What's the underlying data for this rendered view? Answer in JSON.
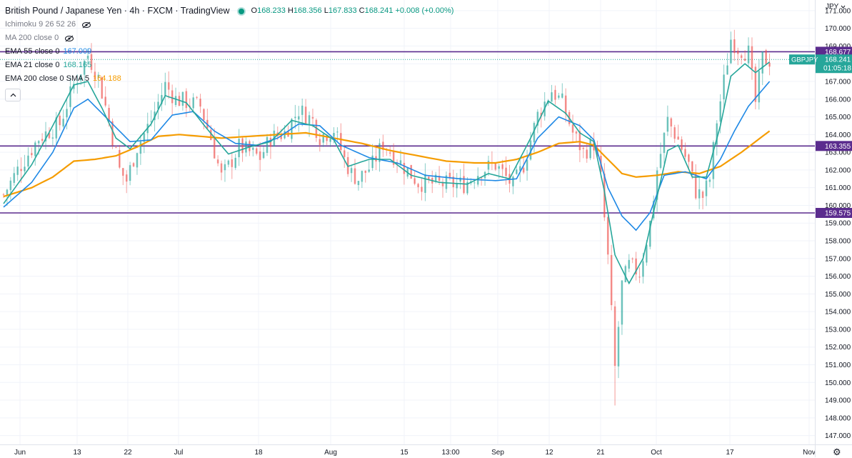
{
  "header": {
    "title": "British Pound / Japanese Yen · 4h · FXCM · TradingView",
    "ohlc": {
      "o_label": "O",
      "o": "168.233",
      "h_label": "H",
      "h": "168.356",
      "l_label": "L",
      "l": "167.833",
      "c_label": "C",
      "c": "168.241",
      "change": "+0.008 (+0.00%)"
    }
  },
  "indicators": [
    {
      "name": "Ichimoku 9 26 52 26",
      "value": "",
      "color": "",
      "hidden": true
    },
    {
      "name": "MA 200 close 0",
      "value": "",
      "color": "",
      "hidden": true
    },
    {
      "name": "EMA 55 close 0",
      "value": "167.009",
      "color": "#1e88e5",
      "hidden": false
    },
    {
      "name": "EMA 21 close 0",
      "value": "168.165",
      "color": "#26a69a",
      "hidden": false
    },
    {
      "name": "EMA 200 close 0 SMA 5",
      "value": "164.188",
      "color": "#f59c00",
      "hidden": false
    }
  ],
  "currency_menu": "JPY",
  "chart_data": {
    "type": "candlestick",
    "symbol": "GBPJPY",
    "interval": "4h",
    "price_axis": {
      "min": 146.5,
      "max": 171.6,
      "ticks": [
        147,
        148,
        149,
        150,
        151,
        152,
        153,
        154,
        155,
        156,
        157,
        158,
        159,
        160,
        161,
        162,
        163,
        164,
        165,
        166,
        167,
        168,
        169,
        170,
        171
      ]
    },
    "time_axis_labels": [
      "Jun",
      "13",
      "22",
      "Jul",
      "18",
      "Aug",
      "15",
      "13:00",
      "Sep",
      "12",
      "21",
      "Oct",
      "17",
      "Nov"
    ],
    "horizontal_lines": [
      {
        "price": 168.677,
        "label": "168.677"
      },
      {
        "price": 163.355,
        "label": "163.355"
      },
      {
        "price": 159.575,
        "label": "159.575"
      }
    ],
    "last_price": {
      "symbol": "GBPJPY",
      "price": "168.241",
      "countdown": "01:05:18"
    },
    "price_path": [
      [
        0,
        160.6
      ],
      [
        4,
        162.0
      ],
      [
        10,
        163.8
      ],
      [
        16,
        164.6
      ],
      [
        20,
        166.8
      ],
      [
        24,
        168.5
      ],
      [
        27,
        167.2
      ],
      [
        30,
        164.8
      ],
      [
        33,
        162.0
      ],
      [
        35,
        161.4
      ],
      [
        38,
        163.3
      ],
      [
        42,
        164.8
      ],
      [
        46,
        166.8
      ],
      [
        49,
        166.0
      ],
      [
        53,
        165.8
      ],
      [
        56,
        165.6
      ],
      [
        59,
        163.8
      ],
      [
        62,
        161.6
      ],
      [
        64,
        162.2
      ],
      [
        67,
        163.3
      ],
      [
        70,
        163.0
      ],
      [
        73,
        162.7
      ],
      [
        76,
        163.8
      ],
      [
        80,
        164.1
      ],
      [
        84,
        165.4
      ],
      [
        88,
        164.8
      ],
      [
        90,
        163.9
      ],
      [
        94,
        164.3
      ],
      [
        97,
        162.6
      ],
      [
        99,
        161.8
      ],
      [
        101,
        161.5
      ],
      [
        105,
        162.3
      ],
      [
        108,
        163.5
      ],
      [
        113,
        162.4
      ],
      [
        118,
        161.3
      ],
      [
        124,
        161.2
      ],
      [
        131,
        161.2
      ],
      [
        136,
        162.0
      ],
      [
        140,
        162.3
      ],
      [
        145,
        161.1
      ],
      [
        148,
        162.3
      ],
      [
        152,
        165.1
      ],
      [
        156,
        166.5
      ],
      [
        159,
        165.8
      ],
      [
        162,
        164.1
      ],
      [
        165,
        163.0
      ],
      [
        168,
        163.5
      ],
      [
        170,
        161.5
      ],
      [
        172,
        157.0
      ],
      [
        174,
        150.8
      ],
      [
        176,
        155.5
      ],
      [
        178,
        156.6
      ],
      [
        181,
        156.2
      ],
      [
        184,
        159.0
      ],
      [
        186,
        162.0
      ],
      [
        189,
        164.8
      ],
      [
        192,
        163.7
      ],
      [
        195,
        162.3
      ],
      [
        197,
        160.8
      ],
      [
        199,
        160.5
      ],
      [
        201,
        161.5
      ],
      [
        203,
        164.8
      ],
      [
        205,
        167.0
      ],
      [
        207,
        169.4
      ],
      [
        209,
        168.9
      ],
      [
        212,
        168.6
      ],
      [
        214,
        165.8
      ],
      [
        216,
        168.3
      ],
      [
        218,
        168.2
      ]
    ],
    "ema21_path": [
      [
        0,
        160.1
      ],
      [
        8,
        162.3
      ],
      [
        14,
        164.5
      ],
      [
        20,
        166.8
      ],
      [
        24,
        167.0
      ],
      [
        28,
        165.5
      ],
      [
        32,
        163.8
      ],
      [
        36,
        163.2
      ],
      [
        42,
        164.6
      ],
      [
        46,
        166.2
      ],
      [
        52,
        165.8
      ],
      [
        58,
        164.3
      ],
      [
        64,
        162.9
      ],
      [
        70,
        163.3
      ],
      [
        76,
        163.6
      ],
      [
        82,
        164.8
      ],
      [
        88,
        164.5
      ],
      [
        94,
        163.7
      ],
      [
        98,
        162.2
      ],
      [
        104,
        162.6
      ],
      [
        110,
        162.6
      ],
      [
        116,
        161.7
      ],
      [
        124,
        161.3
      ],
      [
        132,
        161.2
      ],
      [
        138,
        161.8
      ],
      [
        144,
        161.5
      ],
      [
        150,
        163.8
      ],
      [
        155,
        165.9
      ],
      [
        160,
        165.2
      ],
      [
        164,
        164.1
      ],
      [
        168,
        163.6
      ],
      [
        171,
        160.8
      ],
      [
        174,
        157.2
      ],
      [
        178,
        155.6
      ],
      [
        182,
        157.0
      ],
      [
        186,
        160.5
      ],
      [
        189,
        163.1
      ],
      [
        192,
        163.4
      ],
      [
        196,
        161.6
      ],
      [
        200,
        161.6
      ],
      [
        204,
        164.5
      ],
      [
        207,
        167.3
      ],
      [
        211,
        168.0
      ],
      [
        214,
        167.5
      ],
      [
        218,
        168.1
      ]
    ],
    "ema55_path": [
      [
        0,
        159.9
      ],
      [
        8,
        161.3
      ],
      [
        14,
        163.0
      ],
      [
        20,
        165.5
      ],
      [
        24,
        166.0
      ],
      [
        30,
        164.8
      ],
      [
        36,
        163.6
      ],
      [
        42,
        163.7
      ],
      [
        48,
        165.1
      ],
      [
        54,
        165.3
      ],
      [
        60,
        164.2
      ],
      [
        66,
        163.5
      ],
      [
        72,
        163.4
      ],
      [
        78,
        163.8
      ],
      [
        84,
        164.6
      ],
      [
        90,
        164.5
      ],
      [
        96,
        163.4
      ],
      [
        104,
        162.7
      ],
      [
        112,
        162.4
      ],
      [
        120,
        161.7
      ],
      [
        130,
        161.5
      ],
      [
        140,
        161.4
      ],
      [
        146,
        161.5
      ],
      [
        152,
        163.8
      ],
      [
        158,
        165.0
      ],
      [
        164,
        164.5
      ],
      [
        168,
        163.7
      ],
      [
        172,
        161.0
      ],
      [
        176,
        159.4
      ],
      [
        180,
        158.6
      ],
      [
        184,
        159.6
      ],
      [
        188,
        161.7
      ],
      [
        194,
        161.9
      ],
      [
        200,
        161.5
      ],
      [
        204,
        162.6
      ],
      [
        208,
        164.2
      ],
      [
        212,
        165.6
      ],
      [
        218,
        167.0
      ]
    ],
    "ema200_path": [
      [
        0,
        160.5
      ],
      [
        8,
        161.0
      ],
      [
        14,
        161.6
      ],
      [
        20,
        162.5
      ],
      [
        26,
        162.6
      ],
      [
        32,
        162.8
      ],
      [
        38,
        163.3
      ],
      [
        44,
        163.9
      ],
      [
        50,
        164.0
      ],
      [
        56,
        163.9
      ],
      [
        62,
        163.8
      ],
      [
        70,
        163.9
      ],
      [
        78,
        164.0
      ],
      [
        86,
        164.1
      ],
      [
        94,
        163.8
      ],
      [
        102,
        163.5
      ],
      [
        110,
        163.1
      ],
      [
        118,
        162.8
      ],
      [
        126,
        162.5
      ],
      [
        134,
        162.4
      ],
      [
        140,
        162.4
      ],
      [
        146,
        162.6
      ],
      [
        152,
        163.0
      ],
      [
        158,
        163.5
      ],
      [
        164,
        163.6
      ],
      [
        168,
        163.4
      ],
      [
        172,
        162.6
      ],
      [
        176,
        161.8
      ],
      [
        180,
        161.6
      ],
      [
        186,
        161.7
      ],
      [
        192,
        161.9
      ],
      [
        198,
        161.8
      ],
      [
        204,
        162.2
      ],
      [
        210,
        163.0
      ],
      [
        214,
        163.6
      ],
      [
        218,
        164.2
      ]
    ]
  }
}
